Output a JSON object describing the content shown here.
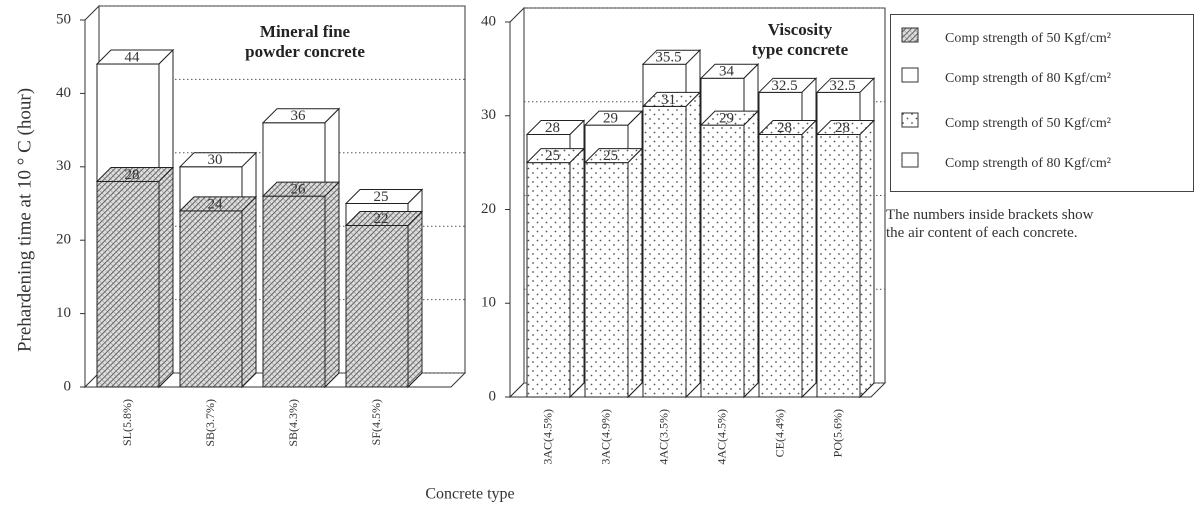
{
  "chart_data": [
    {
      "type": "bar3d",
      "title": "Mineral fine\npowder concrete",
      "ylabel": "Prehardening time at 10 ° C (hour)",
      "xlabel": "Concrete type",
      "categories": [
        "SL(5.8%)",
        "SB(3.7%)",
        "SB(4.3%)",
        "SF(4.5%)"
      ],
      "series": [
        {
          "name": "Comp strength of 50 Kgf/cm²",
          "pattern": "hatch",
          "values": [
            28,
            24,
            26,
            22
          ]
        },
        {
          "name": "Comp strength of 80 Kgf/cm²",
          "pattern": "none",
          "values": [
            44,
            30,
            36,
            25
          ]
        }
      ],
      "ylim": [
        0,
        50
      ],
      "yticks": [
        0,
        10,
        20,
        30,
        40,
        50
      ],
      "grid": true
    },
    {
      "type": "bar3d",
      "title": "Viscosity\ntype concrete",
      "annotation": "The numbers inside brackets show\nthe air content of each concrete.",
      "categories": [
        "3AC(4.5%)",
        "3AC(4.9%)",
        "4AC(3.5%)",
        "4AC(4.5%)",
        "CE(4.4%)",
        "PO(5.6%)"
      ],
      "series": [
        {
          "name": "Comp strength of 50 Kgf/cm²",
          "pattern": "dots",
          "values": [
            25,
            25,
            31,
            29,
            28,
            28
          ]
        },
        {
          "name": "Comp strength of 80 Kgf/cm²",
          "pattern": "none",
          "values": [
            28,
            29,
            35.5,
            34,
            32.5,
            32.5
          ]
        }
      ],
      "ylim": [
        0,
        40
      ],
      "yticks": [
        0,
        10,
        20,
        30,
        40
      ],
      "grid": true
    }
  ]
}
